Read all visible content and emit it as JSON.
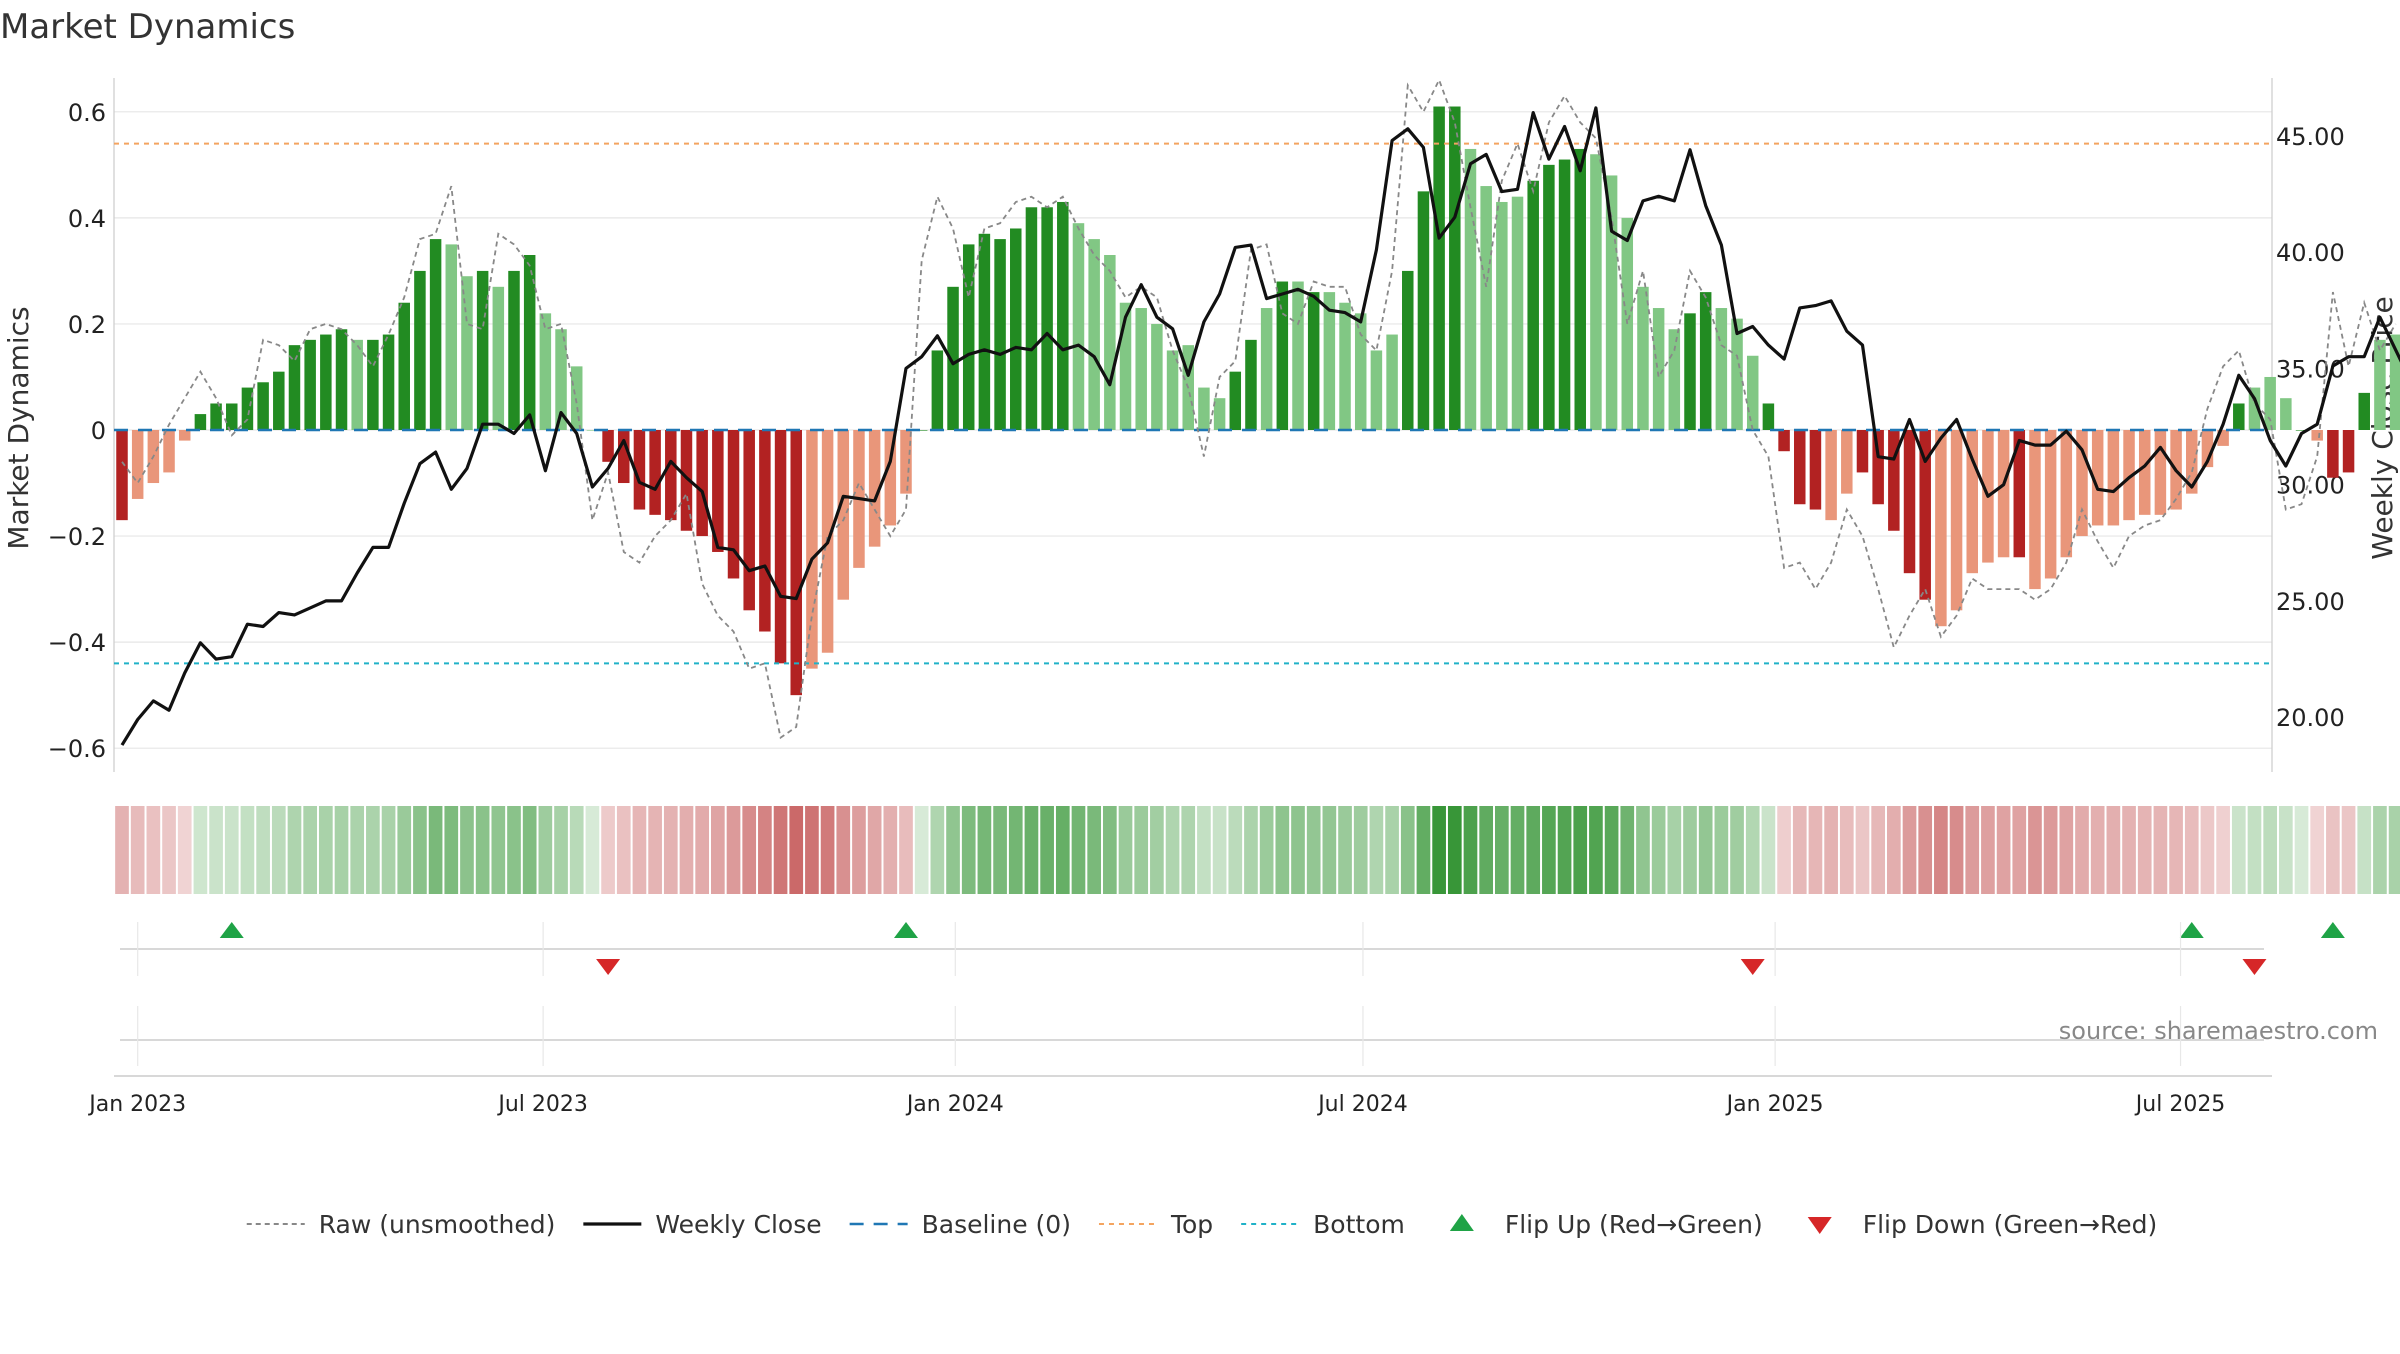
{
  "chart_data": {
    "type": "bar",
    "title": "Market Dynamics",
    "ylabel_left": "Market Dynamics",
    "ylabel_right": "Weekly Close Price",
    "source": "source: sharemaestro.com",
    "left_axis": {
      "ylim": [
        -0.66,
        0.66
      ],
      "ticks": [
        -0.6,
        -0.4,
        -0.2,
        0,
        0.2,
        0.4,
        0.6
      ],
      "tick_labels": [
        "−0.6",
        "−0.4",
        "−0.2",
        "0",
        "0.2",
        "0.4",
        "0.6"
      ]
    },
    "right_axis": {
      "ylim": [
        17.3,
        47.4
      ],
      "ticks": [
        20,
        25,
        30,
        35,
        40,
        45
      ],
      "tick_labels": [
        "20.00",
        "25.00",
        "30.00",
        "35.00",
        "40.00",
        "45.00"
      ]
    },
    "x_axis": {
      "tick_labels": [
        "Jan 2023",
        "Jul 2023",
        "Jan 2024",
        "Jul 2024",
        "Jan 2025",
        "Jul 2025"
      ],
      "tick_dates": [
        "2023-01-01",
        "2023-07-01",
        "2024-01-01",
        "2024-07-01",
        "2025-01-01",
        "2025-07-01"
      ]
    },
    "grid": true,
    "legend_position": "bottom",
    "reference_lines": {
      "baseline": 0,
      "top": 0.54,
      "bottom": -0.44
    },
    "colors": {
      "strong_green": "#228b22",
      "light_green": "#81c784",
      "strong_red": "#b22222",
      "light_red": "#e9967a",
      "raw": "#888888",
      "close": "#111111",
      "baseline": "#1f77b4",
      "top": "#f4a460",
      "bottom": "#20b2c8",
      "flip_up": "#1fa346",
      "flip_down": "#d62728"
    },
    "weeks": {
      "start_date": "2022-12-25",
      "interval_days": 7,
      "momentum": [
        -0.17,
        -0.13,
        -0.1,
        -0.08,
        -0.02,
        0.03,
        0.05,
        0.05,
        0.08,
        0.09,
        0.11,
        0.16,
        0.17,
        0.18,
        0.19,
        0.17,
        0.17,
        0.18,
        0.24,
        0.3,
        0.36,
        0.35,
        0.29,
        0.3,
        0.27,
        0.3,
        0.33,
        0.22,
        0.19,
        0.12,
        0,
        -0.06,
        -0.1,
        -0.15,
        -0.16,
        -0.17,
        -0.19,
        -0.2,
        -0.23,
        -0.28,
        -0.34,
        -0.38,
        -0.44,
        -0.5,
        -0.45,
        -0.42,
        -0.32,
        -0.26,
        -0.22,
        -0.18,
        -0.12,
        0,
        0.15,
        0.27,
        0.35,
        0.37,
        0.36,
        0.38,
        0.42,
        0.42,
        0.43,
        0.39,
        0.36,
        0.33,
        0.24,
        0.23,
        0.2,
        0.15,
        0.16,
        0.08,
        0.06,
        0.11,
        0.17,
        0.23,
        0.28,
        0.28,
        0.26,
        0.26,
        0.24,
        0.22,
        0.15,
        0.18,
        0.3,
        0.45,
        0.61,
        0.61,
        0.53,
        0.46,
        0.43,
        0.44,
        0.47,
        0.5,
        0.51,
        0.53,
        0.52,
        0.48,
        0.4,
        0.27,
        0.23,
        0.19,
        0.22,
        0.26,
        0.23,
        0.21,
        0.14,
        0.05,
        -0.04,
        -0.14,
        -0.15,
        -0.17,
        -0.12,
        -0.08,
        -0.14,
        -0.19,
        -0.27,
        -0.32,
        -0.37,
        -0.34,
        -0.27,
        -0.25,
        -0.24,
        -0.24,
        -0.3,
        -0.28,
        -0.24,
        -0.2,
        -0.18,
        -0.18,
        -0.17,
        -0.16,
        -0.16,
        -0.15,
        -0.12,
        -0.07,
        -0.03,
        0.05,
        0.08,
        0.1,
        0.06,
        0,
        -0.02,
        -0.09,
        -0.08,
        0.07,
        0.17,
        0.18,
        0.16
      ],
      "raw": [
        -0.06,
        -0.1,
        -0.05,
        0.01,
        0.06,
        0.11,
        0.06,
        -0.01,
        0.02,
        0.17,
        0.16,
        0.13,
        0.19,
        0.2,
        0.19,
        0.16,
        0.12,
        0.18,
        0.25,
        0.36,
        0.37,
        0.46,
        0.2,
        0.19,
        0.37,
        0.35,
        0.31,
        0.19,
        0.2,
        0.05,
        -0.17,
        -0.08,
        -0.23,
        -0.25,
        -0.2,
        -0.17,
        -0.12,
        -0.29,
        -0.35,
        -0.38,
        -0.45,
        -0.44,
        -0.58,
        -0.56,
        -0.35,
        -0.2,
        -0.17,
        -0.1,
        -0.15,
        -0.2,
        -0.15,
        0.32,
        0.44,
        0.38,
        0.25,
        0.38,
        0.39,
        0.43,
        0.44,
        0.42,
        0.44,
        0.38,
        0.33,
        0.3,
        0.25,
        0.27,
        0.25,
        0.15,
        0.08,
        -0.05,
        0.1,
        0.13,
        0.34,
        0.35,
        0.22,
        0.2,
        0.28,
        0.27,
        0.27,
        0.18,
        0.15,
        0.3,
        0.65,
        0.6,
        0.66,
        0.58,
        0.42,
        0.27,
        0.47,
        0.54,
        0.45,
        0.58,
        0.63,
        0.58,
        0.55,
        0.4,
        0.2,
        0.3,
        0.1,
        0.15,
        0.3,
        0.25,
        0.16,
        0.14,
        0,
        -0.05,
        -0.26,
        -0.25,
        -0.3,
        -0.25,
        -0.15,
        -0.2,
        -0.3,
        -0.41,
        -0.35,
        -0.3,
        -0.39,
        -0.35,
        -0.28,
        -0.3,
        -0.3,
        -0.3,
        -0.32,
        -0.3,
        -0.25,
        -0.15,
        -0.21,
        -0.26,
        -0.2,
        -0.18,
        -0.17,
        -0.13,
        -0.08,
        0.04,
        0.12,
        0.15,
        0.05,
        0.02,
        -0.15,
        -0.14,
        -0.05,
        0.26,
        0.12,
        0.24,
        0.15,
        0.2
      ],
      "close": [
        18.8,
        19.9,
        20.7,
        20.3,
        21.9,
        23.2,
        22.5,
        22.6,
        24,
        23.9,
        24.5,
        24.4,
        24.7,
        25,
        25,
        26.2,
        27.3,
        27.3,
        29.2,
        30.9,
        31.4,
        29.8,
        30.7,
        32.6,
        32.6,
        32.2,
        33,
        30.6,
        33.1,
        32.2,
        29.9,
        30.7,
        31.9,
        30.1,
        29.8,
        31,
        30.3,
        29.7,
        27.3,
        27.2,
        26.3,
        26.5,
        25.2,
        25.1,
        26.8,
        27.5,
        29.5,
        29.4,
        29.3,
        31,
        35,
        35.5,
        36.4,
        35.2,
        35.6,
        35.8,
        35.6,
        35.9,
        35.8,
        36.5,
        35.8,
        36,
        35.5,
        34.3,
        37.2,
        38.6,
        37.2,
        36.7,
        34.7,
        37,
        38.2,
        40.2,
        40.3,
        38,
        38.2,
        38.4,
        38.1,
        37.5,
        37.4,
        37,
        40.1,
        44.8,
        45.3,
        44.5,
        40.6,
        41.5,
        43.8,
        44.2,
        42.6,
        42.7,
        46,
        44,
        45.4,
        43.5,
        46.2,
        40.9,
        40.5,
        42.2,
        42.4,
        42.2,
        44.4,
        42,
        40.3,
        36.5,
        36.8,
        36,
        35.4,
        37.6,
        37.7,
        37.9,
        36.6,
        36,
        31.2,
        31.1,
        32.8,
        31,
        32,
        32.8,
        31.1,
        29.5,
        30,
        31.9,
        31.7,
        31.7,
        32.3,
        31.5,
        29.8,
        29.7,
        30.3,
        30.8,
        31.6,
        30.6,
        29.9,
        31,
        32.6,
        34.7,
        33.7,
        31.9,
        30.8,
        32.2,
        32.6,
        35.1,
        35.5,
        35.5,
        37.2,
        35.8,
        34.4
      ],
      "strength": [
        "strong",
        "light",
        "light",
        "light",
        "light",
        "strong",
        "strong",
        "strong",
        "strong",
        "strong",
        "strong",
        "strong",
        "strong",
        "strong",
        "strong",
        "light",
        "strong",
        "strong",
        "strong",
        "strong",
        "strong",
        "light",
        "light",
        "strong",
        "light",
        "strong",
        "strong",
        "light",
        "light",
        "light",
        "light",
        "strong",
        "strong",
        "strong",
        "strong",
        "strong",
        "strong",
        "strong",
        "strong",
        "strong",
        "strong",
        "strong",
        "strong",
        "strong",
        "light",
        "light",
        "light",
        "light",
        "light",
        "light",
        "light",
        "strong",
        "strong",
        "strong",
        "strong",
        "strong",
        "strong",
        "strong",
        "strong",
        "strong",
        "strong",
        "light",
        "light",
        "light",
        "light",
        "light",
        "light",
        "light",
        "light",
        "light",
        "light",
        "strong",
        "strong",
        "light",
        "strong",
        "light",
        "strong",
        "light",
        "light",
        "light",
        "light",
        "light",
        "strong",
        "strong",
        "strong",
        "strong",
        "light",
        "light",
        "light",
        "light",
        "strong",
        "strong",
        "strong",
        "strong",
        "light",
        "light",
        "light",
        "light",
        "light",
        "light",
        "strong",
        "strong",
        "light",
        "light",
        "light",
        "strong",
        "strong",
        "strong",
        "strong",
        "light",
        "light",
        "strong",
        "strong",
        "strong",
        "strong",
        "strong",
        "light",
        "light",
        "light",
        "light",
        "light",
        "strong",
        "light",
        "light",
        "light",
        "light",
        "light",
        "light",
        "light",
        "light",
        "light",
        "light",
        "light",
        "light",
        "light",
        "strong",
        "light",
        "light",
        "light",
        "strong",
        "light",
        "strong",
        "strong",
        "strong",
        "light"
      ]
    },
    "flip_up_dates": [
      "2023-02-12",
      "2023-12-10",
      "2025-07-06",
      "2025-09-07"
    ],
    "flip_down_dates": [
      "2023-07-30",
      "2024-12-22",
      "2025-08-03"
    ],
    "legend": [
      {
        "label": "Raw (unsmoothed)",
        "icon": "dashed-gray-line"
      },
      {
        "label": "Weekly Close",
        "icon": "solid-black-line"
      },
      {
        "label": "Baseline (0)",
        "icon": "dashed-blue-line"
      },
      {
        "label": "Top",
        "icon": "dotted-orange-line"
      },
      {
        "label": "Bottom",
        "icon": "dotted-cyan-line"
      },
      {
        "label": "Flip Up (Red→Green)",
        "icon": "green-up-triangle"
      },
      {
        "label": "Flip Down (Green→Red)",
        "icon": "red-down-triangle"
      }
    ]
  }
}
